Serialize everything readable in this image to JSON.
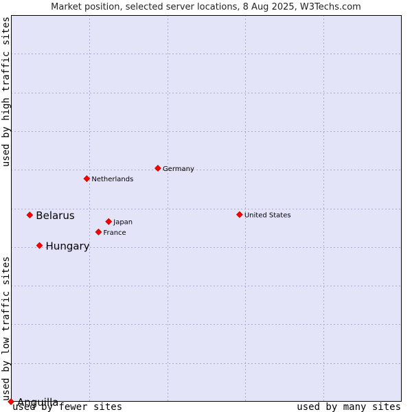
{
  "chart_data": {
    "type": "scatter",
    "title": "Market position, selected server locations, 8 Aug 2025, W3Techs.com",
    "xlabel_low": "used by fewer sites",
    "xlabel_high": "used by many sites",
    "ylabel_low": "used by low traffic sites",
    "ylabel_high": "used by high traffic sites",
    "xlim": [
      0,
      100
    ],
    "ylim": [
      0,
      100
    ],
    "grid": true,
    "x_divisions": 5,
    "y_divisions": 10,
    "point_color": "#ff0000",
    "plot_background": "#e4e4f8",
    "grid_color": "#aaaacc",
    "points": [
      {
        "label": "Germany",
        "x": 37.6,
        "y": 60.4,
        "size": "small"
      },
      {
        "label": "Netherlands",
        "x": 19.4,
        "y": 57.7,
        "size": "small"
      },
      {
        "label": "Belarus",
        "x": 4.8,
        "y": 48.3,
        "size": "large"
      },
      {
        "label": "United States",
        "x": 58.5,
        "y": 48.4,
        "size": "small"
      },
      {
        "label": "Japan",
        "x": 25.0,
        "y": 46.6,
        "size": "small"
      },
      {
        "label": "France",
        "x": 22.4,
        "y": 43.9,
        "size": "small"
      },
      {
        "label": "Hungary",
        "x": 7.3,
        "y": 40.4,
        "size": "large"
      },
      {
        "label": "Anguilla",
        "x": 0,
        "y": 0,
        "size": "large"
      }
    ]
  }
}
